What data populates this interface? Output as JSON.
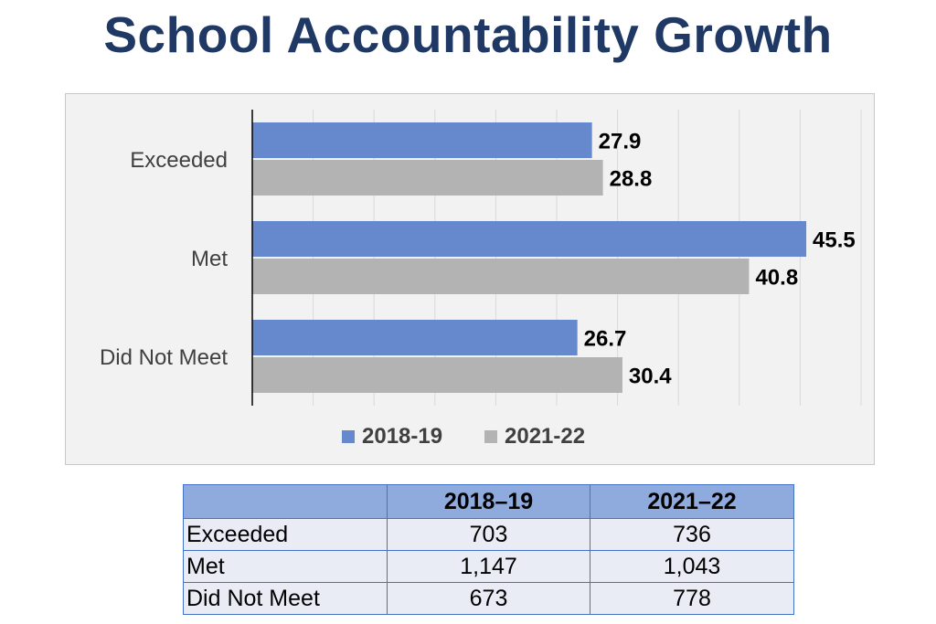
{
  "title": "School Accountability Growth",
  "chart_data": {
    "type": "bar",
    "orientation": "horizontal",
    "categories": [
      "Exceeded",
      "Met",
      "Did Not Meet"
    ],
    "series": [
      {
        "name": "2018-19",
        "values": [
          27.9,
          45.5,
          26.7
        ],
        "color": "#6688cc"
      },
      {
        "name": "2021-22",
        "values": [
          28.8,
          40.8,
          30.4
        ],
        "color": "#b3b3b3"
      }
    ],
    "xlim": [
      0,
      50
    ],
    "grid": "vertical",
    "legend": "bottom-center",
    "data_labels": true
  },
  "table": {
    "header": [
      "",
      "2018–19",
      "2021–22"
    ],
    "rows": [
      [
        "Exceeded",
        "703",
        "736"
      ],
      [
        "Met",
        "1,147",
        "1,043"
      ],
      [
        "Did Not Meet",
        "673",
        "778"
      ]
    ]
  }
}
